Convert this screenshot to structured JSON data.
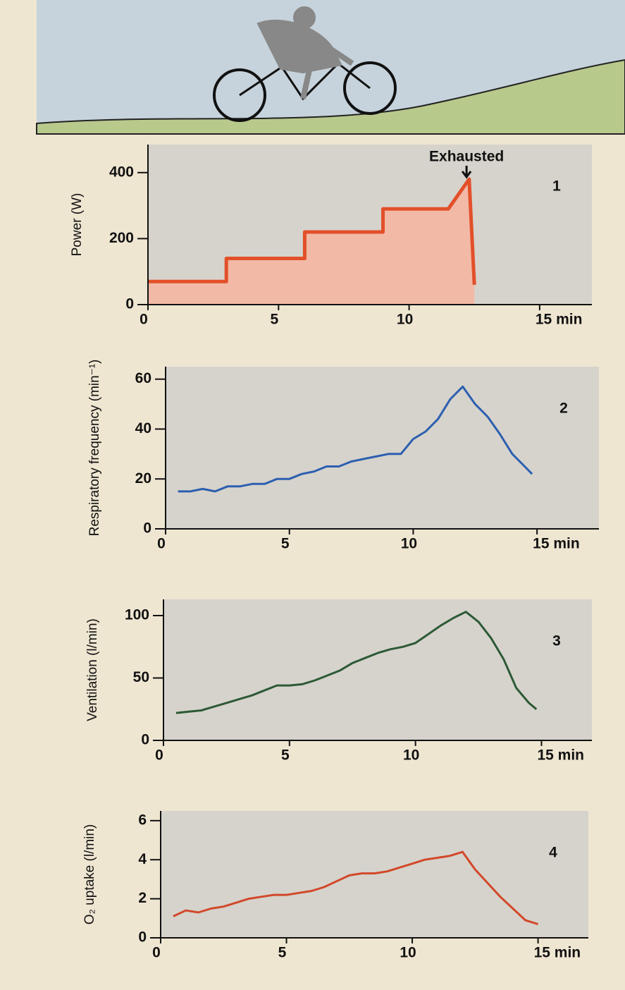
{
  "chart_data": [
    {
      "type": "area-line",
      "ylabel": "Power (W)",
      "label": "1",
      "annotation": "Exhausted",
      "annotation_x": 12.2,
      "x": [
        0,
        3,
        3,
        6,
        6,
        9,
        9,
        11.5,
        12.3,
        12.5
      ],
      "series": [
        {
          "color": "#e2502a",
          "fill": "#f2b9a6",
          "values": [
            70,
            70,
            140,
            140,
            220,
            220,
            290,
            290,
            380,
            60
          ]
        }
      ],
      "xlim": [
        0,
        17
      ],
      "ylim": [
        0,
        485
      ],
      "xticks": [
        0,
        5,
        10,
        {
          "value": 15,
          "label": "15 min"
        }
      ],
      "yticks": [
        0,
        200,
        400
      ]
    },
    {
      "type": "line",
      "ylabel": "Respiratory frequency (min⁻¹)",
      "label": "2",
      "x": [
        0.5,
        1,
        1.5,
        2,
        2.5,
        3,
        3.5,
        4,
        4.5,
        5,
        5.5,
        6,
        6.5,
        7,
        7.5,
        8,
        8.5,
        9,
        9.5,
        10,
        10.5,
        11,
        11.5,
        12,
        12.5,
        13,
        13.5,
        14,
        14.5,
        14.8
      ],
      "series": [
        {
          "color": "#2c5fb0",
          "values": [
            15,
            15,
            16,
            15,
            17,
            17,
            18,
            18,
            20,
            20,
            22,
            23,
            25,
            25,
            27,
            28,
            29,
            30,
            30,
            36,
            39,
            44,
            52,
            57,
            50,
            45,
            38,
            30,
            25,
            22
          ]
        }
      ],
      "xlim": [
        0,
        17.5
      ],
      "ylim": [
        0,
        65
      ],
      "xticks": [
        0,
        5,
        10,
        {
          "value": 15,
          "label": "15 min"
        }
      ],
      "yticks": [
        0,
        20,
        40,
        60
      ]
    },
    {
      "type": "line",
      "ylabel": "Ventilation (l/min)",
      "label": "3",
      "x": [
        0.5,
        1,
        1.5,
        2,
        2.5,
        3,
        3.5,
        4,
        4.5,
        5,
        5.5,
        6,
        6.5,
        7,
        7.5,
        8,
        8.5,
        9,
        9.5,
        10,
        10.5,
        11,
        11.5,
        12,
        12.5,
        13,
        13.5,
        14,
        14.5,
        14.8
      ],
      "series": [
        {
          "color": "#2d5a36",
          "values": [
            22,
            23,
            24,
            27,
            30,
            33,
            36,
            40,
            44,
            44,
            45,
            48,
            52,
            56,
            62,
            66,
            70,
            73,
            75,
            78,
            85,
            92,
            98,
            103,
            95,
            82,
            65,
            42,
            30,
            25
          ]
        }
      ],
      "xlim": [
        0,
        17
      ],
      "ylim": [
        0,
        113
      ],
      "xticks": [
        0,
        5,
        10,
        {
          "value": 15,
          "label": "15 min"
        }
      ],
      "yticks": [
        0,
        50,
        100
      ]
    },
    {
      "type": "line",
      "ylabel": "O₂ uptake (l/min)",
      "label": "4",
      "x": [
        0.5,
        1,
        1.5,
        2,
        2.5,
        3,
        3.5,
        4,
        4.5,
        5,
        5.5,
        6,
        6.5,
        7,
        7.5,
        8,
        8.5,
        9,
        9.5,
        10,
        10.5,
        11,
        11.5,
        12,
        12.5,
        13,
        13.5,
        14,
        14.5,
        15
      ],
      "series": [
        {
          "color": "#d2482a",
          "values": [
            1.1,
            1.4,
            1.3,
            1.5,
            1.6,
            1.8,
            2.0,
            2.1,
            2.2,
            2.2,
            2.3,
            2.4,
            2.6,
            2.9,
            3.2,
            3.3,
            3.3,
            3.4,
            3.6,
            3.8,
            4.0,
            4.1,
            4.2,
            4.4,
            3.5,
            2.8,
            2.1,
            1.5,
            0.9,
            0.7
          ]
        }
      ],
      "xlim": [
        0,
        17
      ],
      "ylim": [
        0,
        6.5
      ],
      "xticks": [
        0,
        5,
        10,
        {
          "value": 15,
          "label": "15 min"
        }
      ],
      "yticks": [
        0,
        2,
        4,
        6
      ]
    }
  ]
}
